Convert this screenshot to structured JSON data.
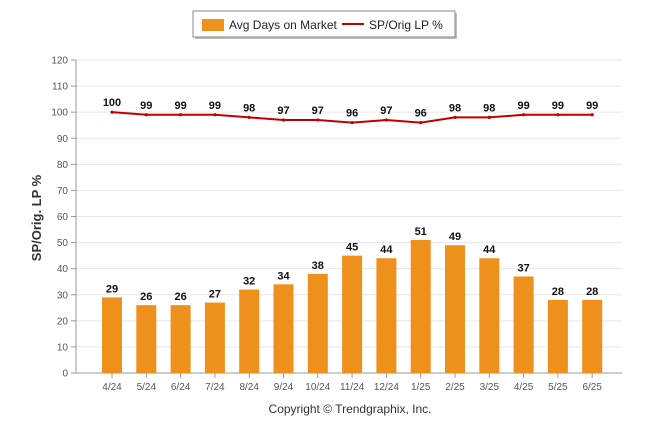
{
  "colors": {
    "bar": "#f0901c",
    "line": "#c00000",
    "grid": "#e6e6e6",
    "axis": "#999999"
  },
  "legend": {
    "bar_label": "Avg Days on Market",
    "line_label": "SP/Orig LP %"
  },
  "footer": {
    "copyright": "Copyright © Trendgraphix, Inc."
  },
  "chart_data": {
    "type": "bar",
    "categories": [
      "4/24",
      "5/24",
      "6/24",
      "7/24",
      "8/24",
      "9/24",
      "10/24",
      "11/24",
      "12/24",
      "1/25",
      "2/25",
      "3/25",
      "4/25",
      "5/25",
      "6/25"
    ],
    "series": [
      {
        "name": "Avg Days on Market",
        "type": "bar",
        "values": [
          29,
          26,
          26,
          27,
          32,
          34,
          38,
          45,
          44,
          51,
          49,
          44,
          37,
          28,
          28
        ]
      },
      {
        "name": "SP/Orig LP %",
        "type": "line",
        "values": [
          100,
          99,
          99,
          99,
          98,
          97,
          97,
          96,
          97,
          96,
          98,
          98,
          99,
          99,
          99
        ]
      }
    ],
    "ylabel": "SP/Orig. LP %",
    "xlabel": "",
    "ylim": [
      0,
      120
    ],
    "yticks": [
      0,
      10,
      20,
      30,
      40,
      50,
      60,
      70,
      80,
      90,
      100,
      110,
      120
    ],
    "grid": true,
    "legend_position": "top-center"
  }
}
